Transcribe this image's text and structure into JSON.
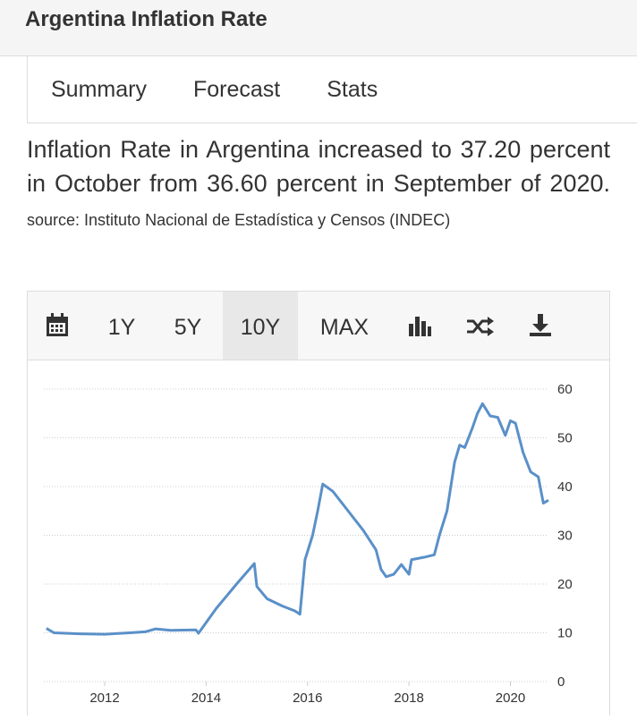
{
  "header": {
    "title": "Argentina Inflation Rate"
  },
  "tabs": [
    "Summary",
    "Forecast",
    "Stats"
  ],
  "description": {
    "text": "Inflation Rate in Argentina increased to 37.20 percent in October from 36.60 percent in September of 2020.",
    "source": "source: Instituto Nacional de Estadística y Censos (INDEC)"
  },
  "toolbar": {
    "ranges": [
      "1Y",
      "5Y",
      "10Y",
      "MAX"
    ]
  },
  "chart_data": {
    "type": "line",
    "color": "#5a90c8",
    "grid": true,
    "x": [
      2010.85,
      2011.0,
      2011.5,
      2012.0,
      2012.5,
      2012.8,
      2013.0,
      2013.3,
      2013.8,
      2013.85,
      2014.2,
      2014.6,
      2014.95,
      2015.0,
      2015.2,
      2015.5,
      2015.75,
      2015.85,
      2015.95,
      2016.1,
      2016.2,
      2016.3,
      2016.5,
      2016.8,
      2017.1,
      2017.35,
      2017.45,
      2017.55,
      2017.7,
      2017.85,
      2018.0,
      2018.05,
      2018.3,
      2018.5,
      2018.6,
      2018.75,
      2018.9,
      2019.0,
      2019.1,
      2019.25,
      2019.35,
      2019.45,
      2019.6,
      2019.75,
      2019.9,
      2020.0,
      2020.1,
      2020.25,
      2020.4,
      2020.55,
      2020.65,
      2020.75
    ],
    "values": [
      10.9,
      10.0,
      9.8,
      9.7,
      10.0,
      10.2,
      10.8,
      10.5,
      10.6,
      9.9,
      15,
      20,
      24.2,
      19.5,
      17,
      15.5,
      14.5,
      13.8,
      25,
      30,
      35,
      40.5,
      39,
      35,
      31,
      27,
      23,
      21.5,
      22,
      24,
      22,
      25,
      25.5,
      26,
      30,
      35,
      45,
      48.5,
      48,
      52,
      55,
      57,
      54.5,
      54.2,
      50.5,
      53.5,
      53,
      47,
      43,
      42,
      36.6,
      37.2
    ],
    "xlim": [
      2010.8,
      2020.75
    ],
    "xticks": [
      2012,
      2014,
      2016,
      2018,
      2020
    ],
    "ylim": [
      0,
      60
    ],
    "yticks": [
      0,
      10,
      20,
      30,
      40,
      50,
      60
    ]
  }
}
